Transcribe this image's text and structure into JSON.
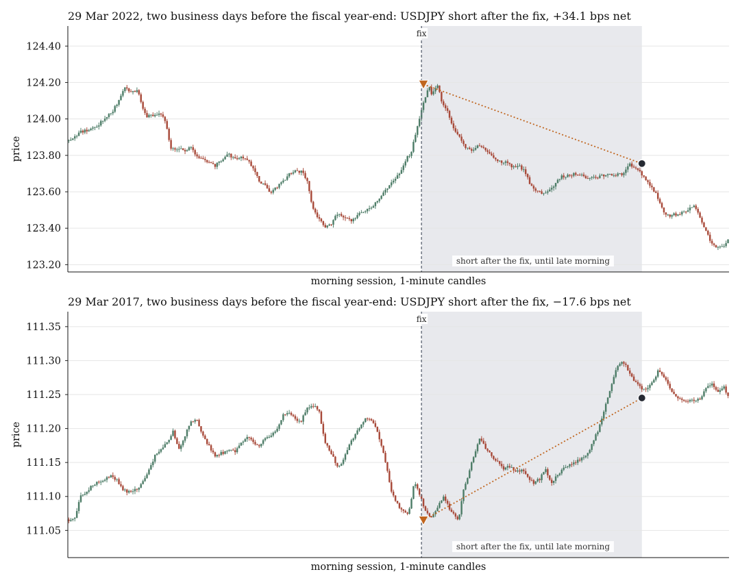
{
  "colors": {
    "up": "#4e7d68",
    "down": "#a84a3a",
    "entry": "#c0651e",
    "exit": "#262a33",
    "shade": "#e8e9ed",
    "fix_line": "#6c7480",
    "grid": "#e5e5e5"
  },
  "chart_data": [
    {
      "type": "candlestick",
      "title": "29 Mar 2022, two business days before the fiscal year-end: USDJPY short after the fix, +34.1 bps net",
      "xlabel": "morning session, 1-minute candles",
      "ylabel": "price",
      "ylim": [
        123.16,
        124.51
      ],
      "yticks": [
        "124.40",
        "124.20",
        "124.00",
        "123.80",
        "123.60",
        "123.40",
        "123.20"
      ],
      "n_candles": 330,
      "fix_label": "fix",
      "fix_index": 176,
      "window_label": "short after the fix, until late morning",
      "window": [
        176,
        285
      ],
      "entry": {
        "index": 177,
        "price": 124.19
      },
      "exit": {
        "index": 286,
        "price": 123.755
      },
      "grid": "horizontal",
      "price_path": [
        [
          0,
          123.88
        ],
        [
          8,
          123.93
        ],
        [
          14,
          123.94
        ],
        [
          20,
          123.97
        ],
        [
          26,
          124.02
        ],
        [
          30,
          124.05
        ],
        [
          34,
          124.11
        ],
        [
          38,
          124.17
        ],
        [
          42,
          124.15
        ],
        [
          46,
          124.16
        ],
        [
          48,
          124.1
        ],
        [
          52,
          124.01
        ],
        [
          56,
          124.02
        ],
        [
          60,
          124.03
        ],
        [
          64,
          124.01
        ],
        [
          66,
          123.95
        ],
        [
          68,
          123.84
        ],
        [
          72,
          123.83
        ],
        [
          78,
          123.83
        ],
        [
          82,
          123.84
        ],
        [
          86,
          123.79
        ],
        [
          90,
          123.78
        ],
        [
          94,
          123.76
        ],
        [
          98,
          123.74
        ],
        [
          102,
          123.77
        ],
        [
          106,
          123.81
        ],
        [
          112,
          123.78
        ],
        [
          118,
          123.79
        ],
        [
          124,
          123.73
        ],
        [
          128,
          123.66
        ],
        [
          132,
          123.63
        ],
        [
          136,
          123.59
        ],
        [
          140,
          123.63
        ],
        [
          144,
          123.66
        ],
        [
          148,
          123.7
        ],
        [
          152,
          123.72
        ],
        [
          156,
          123.71
        ],
        [
          160,
          123.67
        ],
        [
          162,
          123.58
        ],
        [
          164,
          123.51
        ],
        [
          168,
          123.45
        ],
        [
          172,
          123.4
        ],
        [
          176,
          123.42
        ],
        [
          180,
          123.48
        ],
        [
          186,
          123.45
        ],
        [
          190,
          123.44
        ],
        [
          196,
          123.49
        ],
        [
          200,
          123.5
        ],
        [
          204,
          123.52
        ],
        [
          208,
          123.56
        ],
        [
          212,
          123.61
        ],
        [
          216,
          123.64
        ],
        [
          222,
          123.7
        ],
        [
          226,
          123.77
        ],
        [
          230,
          123.82
        ],
        [
          234,
          123.96
        ],
        [
          238,
          124.08
        ],
        [
          242,
          124.18
        ],
        [
          244,
          124.13
        ],
        [
          246,
          124.16
        ],
        [
          248,
          124.19
        ],
        [
          250,
          124.1
        ],
        [
          254,
          124.05
        ],
        [
          258,
          123.96
        ],
        [
          262,
          123.9
        ],
        [
          266,
          123.85
        ],
        [
          270,
          123.83
        ],
        [
          276,
          123.86
        ],
        [
          280,
          123.82
        ],
        [
          284,
          123.8
        ],
        [
          288,
          123.77
        ],
        [
          294,
          123.76
        ],
        [
          298,
          123.73
        ],
        [
          302,
          123.74
        ],
        [
          306,
          123.72
        ],
        [
          310,
          123.64
        ],
        [
          314,
          123.61
        ],
        [
          318,
          123.59
        ],
        [
          322,
          123.6
        ],
        [
          326,
          123.64
        ],
        [
          330,
          123.68
        ],
        [
          336,
          123.69
        ],
        [
          342,
          123.7
        ],
        [
          348,
          123.67
        ],
        [
          354,
          123.68
        ],
        [
          360,
          123.69
        ],
        [
          366,
          123.69
        ],
        [
          372,
          123.7
        ],
        [
          376,
          123.75
        ],
        [
          380,
          123.74
        ],
        [
          384,
          123.7
        ],
        [
          388,
          123.66
        ],
        [
          392,
          123.62
        ],
        [
          396,
          123.56
        ],
        [
          400,
          123.48
        ],
        [
          404,
          123.47
        ],
        [
          410,
          123.48
        ],
        [
          416,
          123.5
        ],
        [
          420,
          123.52
        ],
        [
          424,
          123.46
        ],
        [
          428,
          123.38
        ],
        [
          432,
          123.31
        ],
        [
          436,
          123.29
        ],
        [
          440,
          123.31
        ],
        [
          444,
          123.34
        ]
      ],
      "path_index_scale": 0.7432
    },
    {
      "type": "candlestick",
      "title": "29 Mar 2017, two business days before the fiscal year-end: USDJPY short after the fix, −17.6 bps net",
      "xlabel": "morning session, 1-minute candles",
      "ylabel": "price",
      "ylim": [
        111.01,
        111.372
      ],
      "yticks": [
        "111.35",
        "111.30",
        "111.25",
        "111.20",
        "111.15",
        "111.10",
        "111.05"
      ],
      "n_candles": 330,
      "fix_label": "fix",
      "fix_index": 176,
      "window_label": "short after the fix, until late morning",
      "window": [
        176,
        285
      ],
      "entry": {
        "index": 177,
        "price": 111.065
      },
      "exit": {
        "index": 286,
        "price": 111.245
      },
      "grid": "horizontal",
      "price_path": [
        [
          0,
          111.066
        ],
        [
          4,
          111.07
        ],
        [
          8,
          111.1
        ],
        [
          12,
          111.108
        ],
        [
          16,
          111.117
        ],
        [
          22,
          111.123
        ],
        [
          28,
          111.13
        ],
        [
          32,
          111.125
        ],
        [
          36,
          111.11
        ],
        [
          40,
          111.107
        ],
        [
          46,
          111.11
        ],
        [
          50,
          111.125
        ],
        [
          54,
          111.14
        ],
        [
          58,
          111.16
        ],
        [
          62,
          111.17
        ],
        [
          66,
          111.18
        ],
        [
          70,
          111.195
        ],
        [
          74,
          111.17
        ],
        [
          78,
          111.19
        ],
        [
          82,
          111.21
        ],
        [
          86,
          111.213
        ],
        [
          90,
          111.19
        ],
        [
          94,
          111.175
        ],
        [
          98,
          111.16
        ],
        [
          104,
          111.165
        ],
        [
          108,
          111.17
        ],
        [
          112,
          111.165
        ],
        [
          116,
          111.18
        ],
        [
          120,
          111.19
        ],
        [
          124,
          111.18
        ],
        [
          128,
          111.175
        ],
        [
          132,
          111.185
        ],
        [
          136,
          111.19
        ],
        [
          140,
          111.2
        ],
        [
          144,
          111.22
        ],
        [
          148,
          111.225
        ],
        [
          152,
          111.215
        ],
        [
          156,
          111.21
        ],
        [
          160,
          111.23
        ],
        [
          164,
          111.235
        ],
        [
          168,
          111.225
        ],
        [
          172,
          111.18
        ],
        [
          176,
          111.165
        ],
        [
          180,
          111.145
        ],
        [
          184,
          111.15
        ],
        [
          188,
          111.175
        ],
        [
          192,
          111.19
        ],
        [
          196,
          111.205
        ],
        [
          200,
          111.215
        ],
        [
          204,
          111.21
        ],
        [
          208,
          111.19
        ],
        [
          212,
          111.16
        ],
        [
          216,
          111.11
        ],
        [
          220,
          111.09
        ],
        [
          224,
          111.08
        ],
        [
          228,
          111.075
        ],
        [
          232,
          111.12
        ],
        [
          236,
          111.1
        ],
        [
          240,
          111.075
        ],
        [
          244,
          111.07
        ],
        [
          248,
          111.085
        ],
        [
          252,
          111.1
        ],
        [
          256,
          111.08
        ],
        [
          260,
          111.07
        ],
        [
          262,
          111.065
        ],
        [
          264,
          111.1
        ],
        [
          268,
          111.13
        ],
        [
          272,
          111.16
        ],
        [
          276,
          111.185
        ],
        [
          280,
          111.17
        ],
        [
          284,
          111.16
        ],
        [
          288,
          111.15
        ],
        [
          292,
          111.14
        ],
        [
          296,
          111.145
        ],
        [
          300,
          111.135
        ],
        [
          304,
          111.14
        ],
        [
          308,
          111.13
        ],
        [
          312,
          111.12
        ],
        [
          316,
          111.125
        ],
        [
          320,
          111.14
        ],
        [
          324,
          111.12
        ],
        [
          328,
          111.13
        ],
        [
          332,
          111.14
        ],
        [
          336,
          111.145
        ],
        [
          340,
          111.15
        ],
        [
          344,
          111.155
        ],
        [
          348,
          111.16
        ],
        [
          352,
          111.18
        ],
        [
          356,
          111.2
        ],
        [
          360,
          111.23
        ],
        [
          364,
          111.26
        ],
        [
          368,
          111.29
        ],
        [
          372,
          111.3
        ],
        [
          376,
          111.285
        ],
        [
          380,
          111.27
        ],
        [
          384,
          111.26
        ],
        [
          388,
          111.255
        ],
        [
          392,
          111.27
        ],
        [
          396,
          111.285
        ],
        [
          400,
          111.275
        ],
        [
          404,
          111.26
        ],
        [
          408,
          111.245
        ],
        [
          412,
          111.24
        ],
        [
          418,
          111.24
        ],
        [
          424,
          111.245
        ],
        [
          428,
          111.26
        ],
        [
          432,
          111.265
        ],
        [
          436,
          111.255
        ],
        [
          440,
          111.26
        ],
        [
          444,
          111.24
        ]
      ],
      "path_index_scale": 0.7432
    }
  ]
}
